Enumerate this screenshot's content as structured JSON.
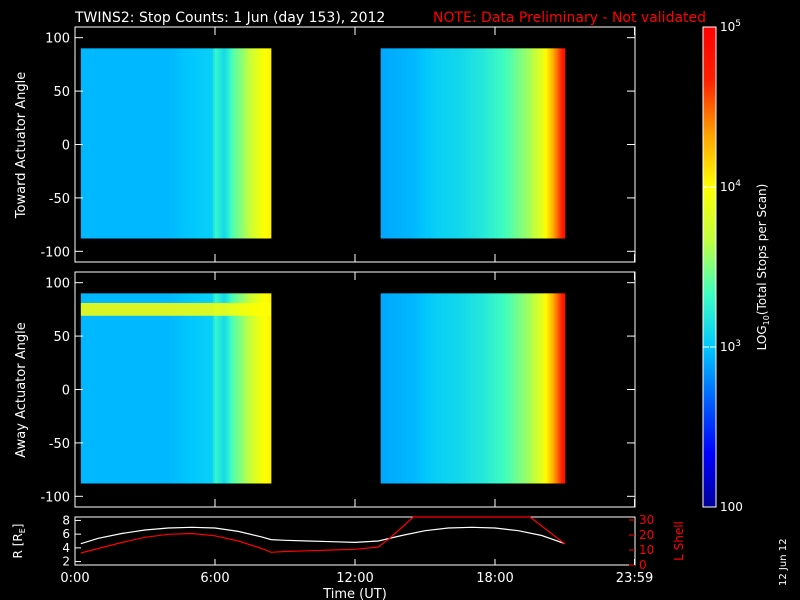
{
  "header": {
    "title": "TWINS2: Stop Counts:  1 Jun (day 153), 2012",
    "note": "NOTE: Data Preliminary - Not validated",
    "note_color": "#ff0000"
  },
  "side_date": "12 Jun 12",
  "colorbar": {
    "label": "LOG10(Total Stops per Scan)",
    "label_prefix": "LOG",
    "label_sub": "10",
    "label_suffix": "(Total Stops per Scan)",
    "scale": "log",
    "range": [
      100,
      100000
    ],
    "ticks": [
      {
        "value": 100000,
        "base": "10",
        "exp": "5",
        "plain": ""
      },
      {
        "value": 10000,
        "base": "10",
        "exp": "4",
        "plain": ""
      },
      {
        "value": 1000,
        "base": "10",
        "exp": "3",
        "plain": ""
      },
      {
        "value": 100,
        "base": "",
        "exp": "",
        "plain": "100"
      }
    ],
    "colormap": [
      "#00009a",
      "#0000ff",
      "#0060ff",
      "#00c8ff",
      "#40ffc0",
      "#c0ff40",
      "#ffff00",
      "#ffa000",
      "#ff2000",
      "#ff0000"
    ]
  },
  "chart_data": [
    {
      "type": "heatmap",
      "name": "toward",
      "ylabel": "Toward Actuator Angle",
      "xlim": [
        0,
        24
      ],
      "ylim": [
        -110,
        110
      ],
      "y_ticks": [
        "100",
        "50",
        "0",
        "-50",
        "-100"
      ],
      "y_tick_values": [
        100,
        50,
        0,
        -50,
        -100
      ],
      "y_data_range": [
        -88,
        90
      ],
      "data_blocks": [
        {
          "t_start": 0.25,
          "t_end": 8.4
        },
        {
          "t_start": 13.1,
          "t_end": 21.0
        }
      ],
      "column_log_counts": [
        {
          "t": 0.25,
          "log": 2.95
        },
        {
          "t": 4.0,
          "log": 2.95
        },
        {
          "t": 5.9,
          "log": 3.05
        },
        {
          "t": 6.0,
          "log": 3.3
        },
        {
          "t": 6.4,
          "log": 3.1
        },
        {
          "t": 6.8,
          "log": 3.4
        },
        {
          "t": 7.2,
          "log": 3.55
        },
        {
          "t": 7.6,
          "log": 3.75
        },
        {
          "t": 8.0,
          "log": 3.95
        },
        {
          "t": 8.4,
          "log": 4.05
        },
        {
          "t": 13.1,
          "log": 2.9
        },
        {
          "t": 14.5,
          "log": 2.95
        },
        {
          "t": 15.5,
          "log": 3.05
        },
        {
          "t": 16.5,
          "log": 3.1
        },
        {
          "t": 17.5,
          "log": 3.2
        },
        {
          "t": 18.5,
          "log": 3.35
        },
        {
          "t": 19.5,
          "log": 3.6
        },
        {
          "t": 20.0,
          "log": 3.85
        },
        {
          "t": 20.4,
          "log": 4.2
        },
        {
          "t": 20.8,
          "log": 4.6
        },
        {
          "t": 21.0,
          "log": 4.85
        }
      ]
    },
    {
      "type": "heatmap",
      "name": "away",
      "ylabel": "Away Actuator Angle",
      "xlim": [
        0,
        24
      ],
      "ylim": [
        -110,
        110
      ],
      "y_ticks": [
        "100",
        "50",
        "0",
        "-50",
        "-100"
      ],
      "y_tick_values": [
        100,
        50,
        0,
        -50,
        -100
      ],
      "y_data_range": [
        -88,
        90
      ],
      "data_blocks": [
        {
          "t_start": 0.25,
          "t_end": 8.4
        },
        {
          "t_start": 13.1,
          "t_end": 21.0
        }
      ],
      "column_log_counts": [
        {
          "t": 0.25,
          "log": 2.95
        },
        {
          "t": 4.0,
          "log": 2.95
        },
        {
          "t": 5.9,
          "log": 3.05
        },
        {
          "t": 6.0,
          "log": 3.3
        },
        {
          "t": 6.4,
          "log": 3.1
        },
        {
          "t": 6.8,
          "log": 3.4
        },
        {
          "t": 7.2,
          "log": 3.55
        },
        {
          "t": 7.6,
          "log": 3.75
        },
        {
          "t": 8.0,
          "log": 3.95
        },
        {
          "t": 8.4,
          "log": 4.05
        },
        {
          "t": 13.1,
          "log": 2.9
        },
        {
          "t": 14.5,
          "log": 2.95
        },
        {
          "t": 15.5,
          "log": 3.05
        },
        {
          "t": 16.5,
          "log": 3.1
        },
        {
          "t": 17.5,
          "log": 3.2
        },
        {
          "t": 18.5,
          "log": 3.35
        },
        {
          "t": 19.5,
          "log": 3.6
        },
        {
          "t": 20.0,
          "log": 3.85
        },
        {
          "t": 20.4,
          "log": 4.2
        },
        {
          "t": 20.8,
          "log": 4.6
        },
        {
          "t": 21.0,
          "log": 4.85
        }
      ],
      "high_band": {
        "y_center": 75,
        "t_start": 0.25,
        "t_end": 8.4,
        "log": 4.0
      }
    },
    {
      "type": "line",
      "name": "orbit",
      "xlabel": "Time (UT)",
      "x_ticks": [
        "0:00",
        "6:00",
        "12:00",
        "18:00",
        "23:59"
      ],
      "x_tick_values": [
        0,
        6,
        12,
        18,
        23.98
      ],
      "xlim": [
        0,
        24
      ],
      "left_axis": {
        "label_prefix": "R [R",
        "label_sub": "E",
        "label_suffix": "]",
        "ticks": [
          "8",
          "6",
          "4",
          "2"
        ],
        "tick_values": [
          8,
          6,
          4,
          2
        ],
        "ylim": [
          1.5,
          8.5
        ]
      },
      "right_axis": {
        "label": "L Shell",
        "ticks": [
          "30",
          "20",
          "10",
          "0"
        ],
        "tick_values": [
          30,
          20,
          10,
          0
        ],
        "ylim": [
          0,
          32
        ],
        "color": "#ff0000"
      },
      "series": [
        {
          "axis": "left",
          "color": "#ffffff",
          "x": [
            0.25,
            1,
            2,
            3,
            4,
            5,
            6,
            7,
            8,
            8.4,
            9,
            10,
            11,
            12,
            13,
            14,
            15,
            16,
            17,
            18,
            19,
            20,
            21
          ],
          "y": [
            4.6,
            5.4,
            6.1,
            6.6,
            6.9,
            7.0,
            6.9,
            6.4,
            5.6,
            5.2,
            5.1,
            5.0,
            4.9,
            4.8,
            5.0,
            5.8,
            6.5,
            6.9,
            7.0,
            6.9,
            6.5,
            5.8,
            4.6
          ]
        },
        {
          "axis": "right",
          "color": "#ff0000",
          "x": [
            0.25,
            1,
            2,
            3,
            4,
            5,
            6,
            7,
            8,
            8.4,
            9,
            10,
            11,
            12,
            13,
            13.5,
            14,
            14.5,
            19.5,
            20,
            20.5,
            21
          ],
          "y": [
            8,
            11,
            15,
            18.5,
            20.5,
            21,
            19.5,
            16,
            11,
            8.5,
            9,
            9.5,
            10,
            10.5,
            12,
            18,
            25,
            32,
            32,
            26,
            20,
            14
          ]
        }
      ]
    }
  ]
}
